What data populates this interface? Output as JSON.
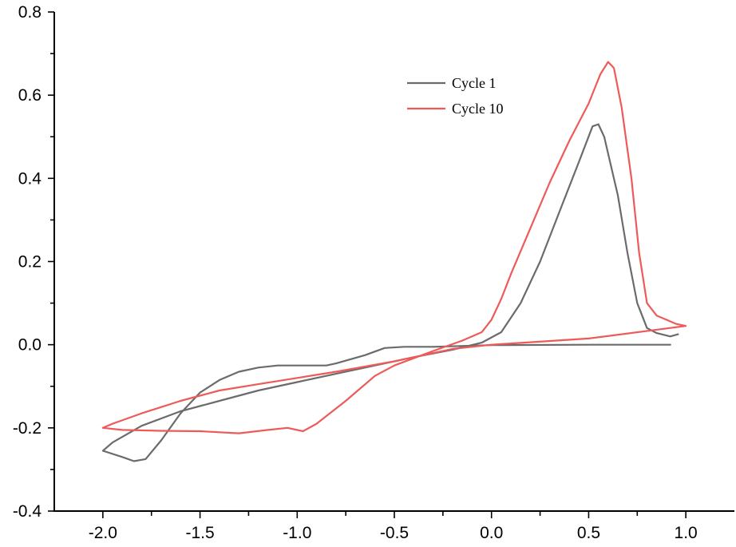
{
  "chart_data": {
    "type": "line",
    "title": "",
    "xlabel": "",
    "ylabel": "",
    "xlim": [
      -2.25,
      1.25
    ],
    "ylim": [
      -0.4,
      0.8
    ],
    "x_ticks": [
      -2.0,
      -1.5,
      -1.0,
      -0.5,
      0.0,
      0.5,
      1.0
    ],
    "x_tick_labels": [
      "-2.0",
      "-1.5",
      "-1.0",
      "-0.5",
      "0.0",
      "0.5",
      "1.0"
    ],
    "y_ticks": [
      -0.4,
      -0.2,
      0.0,
      0.2,
      0.4,
      0.6,
      0.8
    ],
    "y_tick_labels": [
      "-0.4",
      "-0.2",
      "0.0",
      "0.2",
      "0.4",
      "0.6",
      "0.8"
    ],
    "grid": false,
    "legend_position": "top-right",
    "series": [
      {
        "name": "Cycle 1",
        "color": "#6b6b6b",
        "points": [
          [
            0.92,
            0.0
          ],
          [
            0.5,
            0.0
          ],
          [
            0.0,
            -0.001
          ],
          [
            -0.3,
            -0.005
          ],
          [
            -0.45,
            -0.005
          ],
          [
            -0.55,
            -0.008
          ],
          [
            -0.65,
            -0.025
          ],
          [
            -0.8,
            -0.045
          ],
          [
            -0.85,
            -0.05
          ],
          [
            -1.0,
            -0.05
          ],
          [
            -1.1,
            -0.05
          ],
          [
            -1.2,
            -0.055
          ],
          [
            -1.3,
            -0.065
          ],
          [
            -1.4,
            -0.085
          ],
          [
            -1.5,
            -0.115
          ],
          [
            -1.6,
            -0.165
          ],
          [
            -1.7,
            -0.23
          ],
          [
            -1.78,
            -0.275
          ],
          [
            -1.84,
            -0.28
          ],
          [
            -1.9,
            -0.27
          ],
          [
            -2.0,
            -0.255
          ],
          [
            -1.95,
            -0.235
          ],
          [
            -1.8,
            -0.195
          ],
          [
            -1.6,
            -0.16
          ],
          [
            -1.4,
            -0.135
          ],
          [
            -1.2,
            -0.11
          ],
          [
            -1.0,
            -0.09
          ],
          [
            -0.8,
            -0.07
          ],
          [
            -0.6,
            -0.05
          ],
          [
            -0.4,
            -0.03
          ],
          [
            -0.2,
            -0.012
          ],
          [
            -0.05,
            0.005
          ],
          [
            0.05,
            0.03
          ],
          [
            0.15,
            0.1
          ],
          [
            0.25,
            0.2
          ],
          [
            0.35,
            0.32
          ],
          [
            0.45,
            0.44
          ],
          [
            0.52,
            0.525
          ],
          [
            0.55,
            0.53
          ],
          [
            0.58,
            0.5
          ],
          [
            0.65,
            0.36
          ],
          [
            0.7,
            0.22
          ],
          [
            0.75,
            0.1
          ],
          [
            0.8,
            0.04
          ],
          [
            0.85,
            0.028
          ],
          [
            0.92,
            0.02
          ],
          [
            0.96,
            0.025
          ]
        ]
      },
      {
        "name": "Cycle 10",
        "color": "#ee5a5a",
        "points": [
          [
            1.0,
            0.045
          ],
          [
            0.5,
            0.015
          ],
          [
            0.0,
            0.0
          ],
          [
            -0.2,
            -0.01
          ],
          [
            -0.5,
            -0.04
          ],
          [
            -0.8,
            -0.065
          ],
          [
            -1.0,
            -0.08
          ],
          [
            -1.2,
            -0.095
          ],
          [
            -1.4,
            -0.11
          ],
          [
            -1.6,
            -0.135
          ],
          [
            -1.8,
            -0.165
          ],
          [
            -1.95,
            -0.19
          ],
          [
            -2.0,
            -0.2
          ],
          [
            -1.9,
            -0.205
          ],
          [
            -1.7,
            -0.207
          ],
          [
            -1.5,
            -0.208
          ],
          [
            -1.3,
            -0.213
          ],
          [
            -1.15,
            -0.205
          ],
          [
            -1.05,
            -0.2
          ],
          [
            -0.97,
            -0.208
          ],
          [
            -0.9,
            -0.19
          ],
          [
            -0.75,
            -0.135
          ],
          [
            -0.6,
            -0.075
          ],
          [
            -0.5,
            -0.05
          ],
          [
            -0.3,
            -0.015
          ],
          [
            -0.15,
            0.01
          ],
          [
            -0.05,
            0.03
          ],
          [
            0.0,
            0.06
          ],
          [
            0.05,
            0.11
          ],
          [
            0.1,
            0.17
          ],
          [
            0.2,
            0.28
          ],
          [
            0.3,
            0.39
          ],
          [
            0.4,
            0.49
          ],
          [
            0.5,
            0.58
          ],
          [
            0.56,
            0.65
          ],
          [
            0.6,
            0.68
          ],
          [
            0.63,
            0.665
          ],
          [
            0.67,
            0.57
          ],
          [
            0.72,
            0.4
          ],
          [
            0.76,
            0.22
          ],
          [
            0.8,
            0.1
          ],
          [
            0.85,
            0.07
          ],
          [
            0.9,
            0.06
          ],
          [
            0.95,
            0.05
          ],
          [
            1.0,
            0.045
          ]
        ]
      }
    ]
  }
}
